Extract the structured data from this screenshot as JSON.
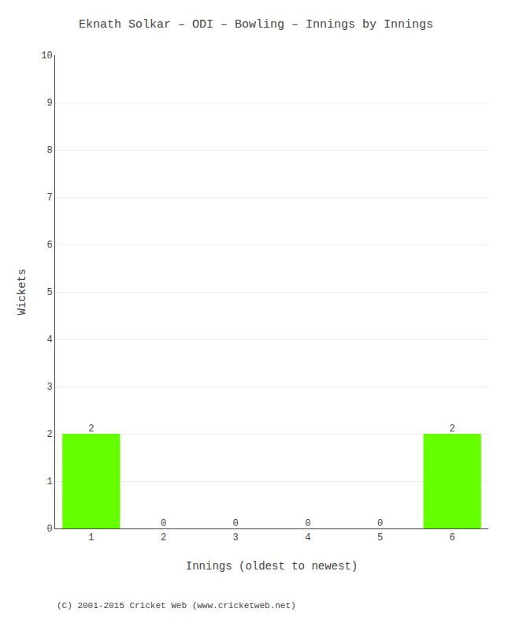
{
  "chart_data": {
    "type": "bar",
    "title": "Eknath Solkar – ODI – Bowling – Innings by Innings",
    "xlabel": "Innings (oldest to newest)",
    "ylabel": "Wickets",
    "categories": [
      1,
      2,
      3,
      4,
      5,
      6
    ],
    "values": [
      2,
      0,
      0,
      0,
      0,
      2
    ],
    "color": "#66ff00",
    "ylim": [
      0,
      10
    ],
    "yticks": [
      0,
      1,
      2,
      3,
      4,
      5,
      6,
      7,
      8,
      9,
      10
    ],
    "grid": true,
    "data_labels": true,
    "annotations": [
      "(C) 2001-2015 Cricket Web (www.cricketweb.net)"
    ]
  }
}
